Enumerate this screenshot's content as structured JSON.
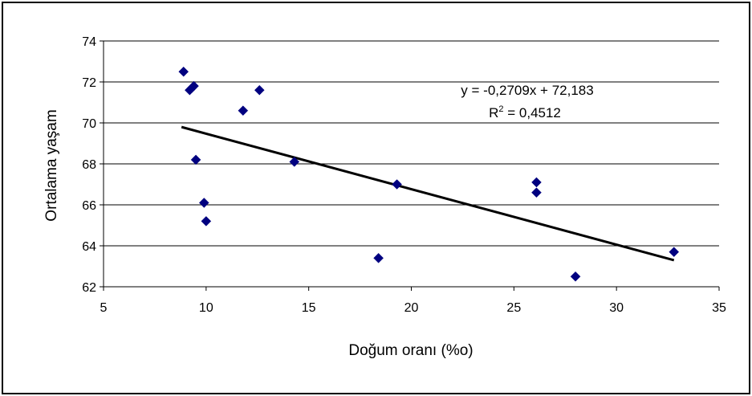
{
  "chart_data": {
    "type": "scatter",
    "title": "",
    "xlabel": "Doğum oranı (%o)",
    "ylabel": "Ortalama yaşam",
    "xlim": [
      5,
      35
    ],
    "ylim": [
      62,
      74
    ],
    "x_ticks": [
      5,
      10,
      15,
      20,
      25,
      30,
      35
    ],
    "y_ticks": [
      62,
      64,
      66,
      68,
      70,
      72,
      74
    ],
    "grid": {
      "horizontal": true,
      "vertical": false
    },
    "legend": "none",
    "marker_color": "#000080",
    "trendline_color": "#000000",
    "points": [
      {
        "x": 8.9,
        "y": 72.5
      },
      {
        "x": 9.2,
        "y": 71.6
      },
      {
        "x": 9.3,
        "y": 71.7
      },
      {
        "x": 9.4,
        "y": 71.8
      },
      {
        "x": 9.5,
        "y": 68.2
      },
      {
        "x": 9.9,
        "y": 66.1
      },
      {
        "x": 10.0,
        "y": 65.2
      },
      {
        "x": 11.8,
        "y": 70.6
      },
      {
        "x": 12.6,
        "y": 71.6
      },
      {
        "x": 14.3,
        "y": 68.1
      },
      {
        "x": 18.4,
        "y": 63.4
      },
      {
        "x": 19.3,
        "y": 67.0
      },
      {
        "x": 26.1,
        "y": 67.1
      },
      {
        "x": 26.1,
        "y": 66.6
      },
      {
        "x": 28.0,
        "y": 62.5
      },
      {
        "x": 32.8,
        "y": 63.7
      }
    ],
    "trendline": {
      "slope": -0.2709,
      "intercept": 72.183,
      "x_range": [
        8.8,
        32.8
      ],
      "equation_text": "y = -0,2709x + 72,183",
      "r2_prefix": "R",
      "r2_superscript": "2",
      "r2_value_text": " = 0,4512"
    }
  }
}
